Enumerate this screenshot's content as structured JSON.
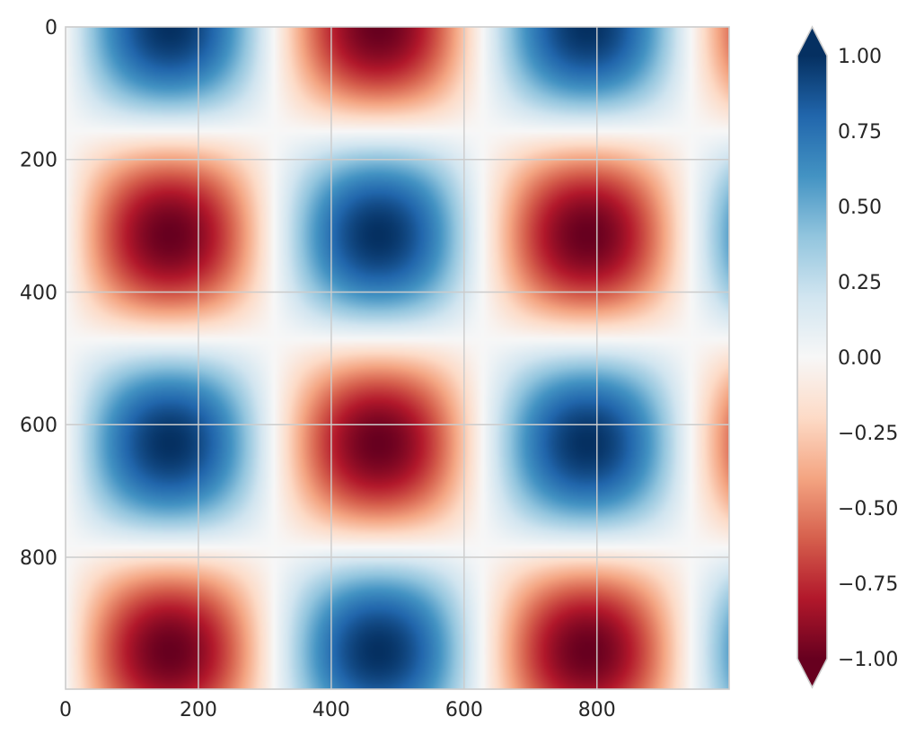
{
  "chart_data": {
    "type": "heatmap",
    "function": "sin(2*pi*x/628) * cos(2*pi*y/628)",
    "x_range": [
      0,
      999
    ],
    "y_range": [
      0,
      999
    ],
    "y_inverted": true,
    "x_ticks": [
      "0",
      "200",
      "400",
      "600",
      "800"
    ],
    "x_tick_values": [
      0,
      200,
      400,
      600,
      800
    ],
    "y_ticks": [
      "0",
      "200",
      "400",
      "600",
      "800"
    ],
    "y_tick_values": [
      0,
      200,
      400,
      600,
      800
    ],
    "grid": true,
    "colormap": {
      "name": "RdBu",
      "vmin": -1.0,
      "vmax": 1.0,
      "extend": "both",
      "stops": [
        "#67001f",
        "#b2182b",
        "#d6604d",
        "#f4a582",
        "#fddbc7",
        "#f7f7f7",
        "#d1e5f0",
        "#92c5de",
        "#4393c3",
        "#2166ac",
        "#053061"
      ]
    },
    "colorbar_ticks": [
      "−1.00",
      "−0.75",
      "−0.50",
      "−0.25",
      "0.00",
      "0.25",
      "0.50",
      "0.75",
      "1.00"
    ],
    "colorbar_tick_values": [
      -1.0,
      -0.75,
      -0.5,
      -0.25,
      0.0,
      0.25,
      0.5,
      0.75,
      1.0
    ],
    "title": "",
    "xlabel": "",
    "ylabel": ""
  }
}
